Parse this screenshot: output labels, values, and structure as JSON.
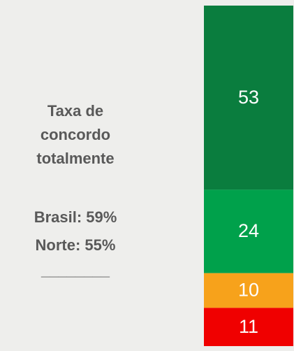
{
  "chart_data": {
    "type": "stacked-bar",
    "annotations": [
      "Taxa de",
      "concordo",
      "totalmente",
      "Brasil: 59%",
      "Norte: 55%",
      "________"
    ],
    "series": [
      {
        "color": "#0a7d3e",
        "values": [
          53
        ]
      },
      {
        "color": "#00a14b",
        "values": [
          24
        ]
      },
      {
        "color": "#f7a21b",
        "values": [
          10
        ]
      },
      {
        "color": "#f00000",
        "values": [
          11
        ]
      }
    ]
  }
}
